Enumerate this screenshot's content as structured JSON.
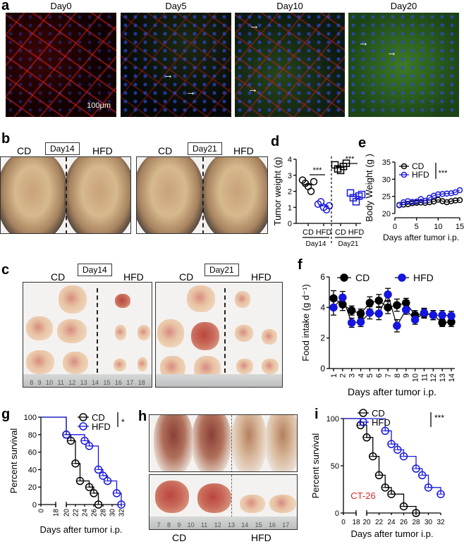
{
  "panels": {
    "a": "a",
    "b": "b",
    "c": "c",
    "d": "d",
    "e": "e",
    "f": "f",
    "g": "g",
    "h": "h",
    "i": "i"
  },
  "panel_a": {
    "titles": [
      "Day0",
      "Day5",
      "Day10",
      "Day20"
    ],
    "scale_bar": "100μm"
  },
  "panel_b": {
    "left": {
      "cd": "CD",
      "day": "Day14",
      "hfd": "HFD"
    },
    "right": {
      "cd": "CD",
      "day": "Day21",
      "hfd": "HFD"
    }
  },
  "panel_c": {
    "left": {
      "cd": "CD",
      "day": "Day14",
      "hfd": "HFD",
      "ruler": [
        "8",
        "9",
        "10",
        "11",
        "12",
        "13",
        "14",
        "15",
        "16",
        "17",
        "18"
      ]
    },
    "right": {
      "cd": "CD",
      "day": "Day21",
      "hfd": "HFD"
    }
  },
  "panel_h": {
    "cd": "CD",
    "hfd": "HFD",
    "ruler": [
      "7",
      "8",
      "9",
      "10",
      "11",
      "12",
      "13",
      "14",
      "15",
      "16",
      "17"
    ]
  },
  "colors": {
    "cd": "#000000",
    "hfd": "#1a1adc",
    "annotation": "#d42a2a"
  },
  "chart_data": [
    {
      "id": "d",
      "type": "scatter",
      "ylabel": "Tumor weight (g)",
      "ylim": [
        0,
        4
      ],
      "yticks": [
        0,
        1,
        2,
        3,
        4
      ],
      "categories": [
        "CD",
        "HFD",
        "CD",
        "HFD"
      ],
      "groups": [
        "Day14",
        "Day21"
      ],
      "values": [
        [
          2.7,
          2.5,
          2.3,
          2.0,
          2.6
        ],
        [
          1.2,
          1.35,
          1.0,
          0.85,
          1.1
        ],
        [
          3.65,
          3.4,
          3.3,
          3.55,
          3.75
        ],
        [
          1.9,
          1.6,
          1.35,
          1.7,
          1.8
        ]
      ],
      "significance": [
        "***",
        "***"
      ]
    },
    {
      "id": "e",
      "type": "line",
      "ylabel": "Body Weight (g )",
      "xlabel": "Days after tumor i.p.",
      "xlim": [
        0,
        15
      ],
      "ylim": [
        20,
        35
      ],
      "xticks": [
        0,
        5,
        10,
        15
      ],
      "yticks": [
        20,
        25,
        30,
        35
      ],
      "x": [
        1,
        2,
        3,
        4,
        5,
        6,
        7,
        8,
        9,
        10,
        11,
        12,
        13,
        14,
        15
      ],
      "series": [
        {
          "name": "CD",
          "values": [
            22.5,
            22.6,
            22.7,
            23.0,
            23.1,
            23.2,
            23.1,
            23.3,
            23.5,
            24.0,
            23.6,
            23.3,
            23.6,
            23.8,
            23.9
          ]
        },
        {
          "name": "HFD",
          "values": [
            22.4,
            23.3,
            23.6,
            23.4,
            23.5,
            24.2,
            23.7,
            24.6,
            25.2,
            25.6,
            25.7,
            25.8,
            25.9,
            26.2,
            26.8
          ]
        }
      ],
      "significance": "***"
    },
    {
      "id": "f",
      "type": "line",
      "ylabel": "Food intake (g d⁻¹)",
      "xlabel": "Days after tumor i.p.",
      "ylim": [
        0,
        6
      ],
      "yticks": [
        0,
        2,
        4,
        6
      ],
      "x": [
        "1",
        "2",
        "3",
        "4",
        "5",
        "6",
        "7",
        "8",
        "9",
        "10",
        "11",
        "12",
        "13",
        "14"
      ],
      "series": [
        {
          "name": "CD",
          "values": [
            4.6,
            4.2,
            3.8,
            3.6,
            4.3,
            4.45,
            4.0,
            4.15,
            4.3,
            3.5,
            3.6,
            3.5,
            3.0,
            3.05
          ],
          "error": [
            0.5,
            0.4,
            0.3,
            0.3,
            0.4,
            0.4,
            0.4,
            0.4,
            0.3,
            0.3,
            0.3,
            0.3,
            0.25,
            0.3
          ]
        },
        {
          "name": "HFD",
          "values": [
            4.0,
            4.65,
            3.0,
            3.05,
            3.65,
            3.6,
            4.85,
            2.8,
            3.85,
            3.2,
            3.65,
            3.5,
            3.5,
            3.45
          ],
          "error": [
            0.5,
            0.4,
            0.3,
            0.3,
            0.4,
            0.4,
            0.4,
            0.4,
            0.3,
            0.3,
            0.3,
            0.3,
            0.3,
            0.3
          ]
        }
      ]
    },
    {
      "id": "g",
      "type": "line",
      "subtype": "kaplan-meier",
      "ylabel": "Percent survival",
      "xlabel": "Days after tumor i.p.",
      "ylim": [
        0,
        100
      ],
      "yticks": [
        0,
        20,
        40,
        60,
        80,
        100
      ],
      "xticks": [
        0,
        18,
        20,
        22,
        24,
        26,
        28,
        30,
        32
      ],
      "axis_break": [
        18,
        20
      ],
      "series": [
        {
          "name": "CD",
          "steps": [
            [
              0,
              100
            ],
            [
              20,
              80
            ],
            [
              21,
              73
            ],
            [
              22,
              47
            ],
            [
              23,
              27
            ],
            [
              25,
              20
            ],
            [
              26,
              13
            ],
            [
              27,
              0
            ]
          ]
        },
        {
          "name": "HFD",
          "steps": [
            [
              0,
              100
            ],
            [
              20,
              80
            ],
            [
              24,
              73
            ],
            [
              25,
              67
            ],
            [
              27,
              40
            ],
            [
              28,
              33
            ],
            [
              29,
              27
            ],
            [
              31,
              13
            ],
            [
              32,
              0
            ]
          ]
        }
      ],
      "significance": "*"
    },
    {
      "id": "i",
      "type": "line",
      "subtype": "kaplan-meier",
      "ylabel": "Percent survival",
      "xlabel": "Days after tumor i.p.",
      "ylim": [
        0,
        100
      ],
      "yticks": [
        0,
        50,
        100
      ],
      "xticks": [
        0,
        18,
        20,
        22,
        24,
        26,
        28,
        30,
        32
      ],
      "axis_break": [
        18,
        20
      ],
      "series": [
        {
          "name": "CD",
          "steps": [
            [
              0,
              100
            ],
            [
              19,
              93
            ],
            [
              20,
              80
            ],
            [
              21,
              60
            ],
            [
              22,
              40
            ],
            [
              23,
              27
            ],
            [
              24,
              20
            ],
            [
              26,
              7
            ],
            [
              28,
              0
            ]
          ]
        },
        {
          "name": "HFD",
          "steps": [
            [
              0,
              100
            ],
            [
              23,
              87
            ],
            [
              24,
              73
            ],
            [
              25,
              67
            ],
            [
              26,
              60
            ],
            [
              28,
              47
            ],
            [
              29,
              40
            ],
            [
              30,
              27
            ],
            [
              32,
              20
            ]
          ]
        }
      ],
      "significance": "***",
      "annotation": "CT-26"
    }
  ]
}
